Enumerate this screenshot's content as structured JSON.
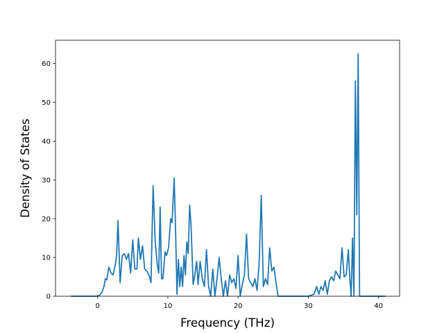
{
  "chart_data": {
    "type": "line",
    "title": "",
    "xlabel": "Frequency (THz)",
    "ylabel": "Density of States",
    "xlim": [
      -6,
      43
    ],
    "ylim": [
      0,
      66
    ],
    "xticks": [
      0,
      10,
      20,
      30,
      40
    ],
    "yticks": [
      0,
      10,
      20,
      30,
      40,
      50,
      60
    ],
    "grid": false,
    "legend": "none",
    "line_color": "#1f77b4",
    "series": [
      {
        "x": [
          -3.8,
          -3.0,
          -2.0,
          -1.0,
          -0.2,
          0.3,
          0.6,
          0.9,
          1.1,
          1.3,
          1.6,
          1.9,
          2.2,
          2.5,
          2.7,
          2.9,
          3.2,
          3.5,
          3.8,
          4.1,
          4.4,
          4.7,
          5.0,
          5.3,
          5.6,
          5.8,
          6.1,
          6.4,
          6.7,
          7.0,
          7.3,
          7.6,
          7.9,
          8.2,
          8.5,
          8.7,
          8.9,
          9.1,
          9.3,
          9.6,
          9.8,
          10.1,
          10.4,
          10.6,
          10.9,
          11.1,
          11.3,
          11.5,
          11.7,
          11.9,
          12.1,
          12.3,
          12.5,
          12.7,
          12.9,
          13.1,
          13.3,
          13.6,
          13.8,
          14.1,
          14.3,
          14.6,
          14.9,
          15.2,
          15.5,
          15.8,
          16.1,
          16.4,
          16.7,
          17.0,
          17.3,
          17.6,
          17.9,
          18.2,
          18.5,
          18.8,
          19.1,
          19.4,
          19.7,
          20.0,
          20.3,
          20.6,
          20.9,
          21.2,
          21.5,
          21.8,
          22.1,
          22.4,
          22.7,
          23.0,
          23.3,
          23.6,
          23.9,
          24.2,
          24.5,
          24.8,
          25.1,
          25.4,
          25.7,
          26.0,
          27.0,
          28.0,
          29.0,
          30.0,
          30.8,
          31.2,
          31.5,
          31.8,
          32.1,
          32.4,
          32.7,
          33.0,
          33.3,
          33.6,
          33.9,
          34.2,
          34.5,
          34.8,
          35.1,
          35.4,
          35.7,
          35.9,
          36.1,
          36.3,
          36.5,
          36.7,
          36.9,
          37.1,
          37.3,
          37.5,
          38.0,
          39.0,
          40.0,
          41.0
        ],
        "y": [
          0,
          0,
          0,
          0,
          0,
          0.3,
          1.0,
          2.5,
          4.5,
          4.2,
          7.5,
          6.0,
          5.5,
          8.0,
          10.5,
          19.5,
          3.5,
          10.5,
          11.0,
          9.5,
          11.0,
          6.0,
          14.5,
          7.0,
          7.0,
          15.0,
          9.5,
          13.0,
          7.0,
          6.5,
          5.5,
          3.5,
          28.5,
          14.0,
          8.0,
          6.0,
          23.0,
          4.5,
          4.5,
          11.5,
          10.5,
          12.5,
          20.0,
          19.0,
          30.5,
          17.0,
          0.5,
          9.5,
          2.5,
          7.5,
          2.5,
          10.5,
          5.5,
          14.0,
          11.0,
          23.5,
          18.5,
          3.0,
          5.0,
          9.0,
          3.0,
          9.0,
          4.5,
          2.5,
          12.0,
          2.5,
          0,
          7.0,
          0,
          4.5,
          10.0,
          4.5,
          0,
          4.0,
          0,
          5.5,
          3.5,
          4.5,
          2.0,
          10.5,
          0,
          3.0,
          5.5,
          16.0,
          4.5,
          3.5,
          2.5,
          4.5,
          1.5,
          8.5,
          26.0,
          2.5,
          4.5,
          3.0,
          12.5,
          6.5,
          7.5,
          3.5,
          0,
          0,
          0,
          0,
          0,
          0,
          0.5,
          2.5,
          0.5,
          2.5,
          1.5,
          4.0,
          0.5,
          4.0,
          5.0,
          4.0,
          6.5,
          5.5,
          4.5,
          12.5,
          5.0,
          5.5,
          12.0,
          5.0,
          0,
          15.0,
          0,
          55.5,
          21.0,
          62.5,
          0,
          0,
          0,
          0,
          0,
          0
        ]
      }
    ]
  }
}
